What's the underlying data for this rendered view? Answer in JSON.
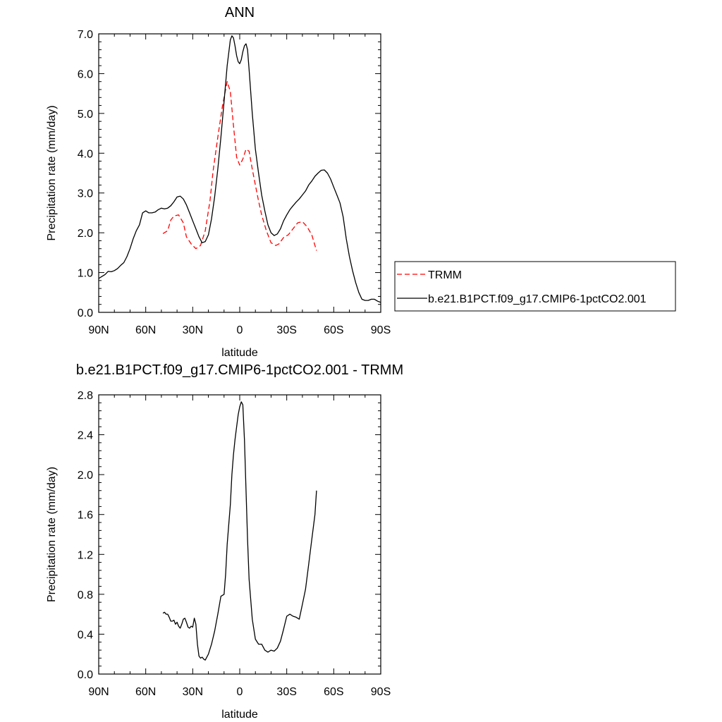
{
  "chart_data": [
    {
      "type": "line",
      "title": "ANN",
      "xlabel": "latitude",
      "ylabel": "Precipitation rate (mm/day)",
      "xlim": [
        90,
        -90
      ],
      "ylim": [
        0.0,
        7.0
      ],
      "xticks": [
        {
          "value": 90,
          "label": "90N"
        },
        {
          "value": 60,
          "label": "60N"
        },
        {
          "value": 30,
          "label": "30N"
        },
        {
          "value": 0,
          "label": "0"
        },
        {
          "value": -30,
          "label": "30S"
        },
        {
          "value": -60,
          "label": "60S"
        },
        {
          "value": -90,
          "label": "90S"
        }
      ],
      "yticks": [
        {
          "value": 0.0,
          "label": "0.0"
        },
        {
          "value": 1.0,
          "label": "1.0"
        },
        {
          "value": 2.0,
          "label": "2.0"
        },
        {
          "value": 3.0,
          "label": "3.0"
        },
        {
          "value": 4.0,
          "label": "4.0"
        },
        {
          "value": 5.0,
          "label": "5.0"
        },
        {
          "value": 6.0,
          "label": "6.0"
        },
        {
          "value": 7.0,
          "label": "7.0"
        }
      ],
      "series": [
        {
          "name": "TRMM",
          "color": "#ff0000",
          "dash": true,
          "x": [
            49,
            46,
            44,
            42,
            39,
            36,
            34,
            31,
            28,
            25,
            22,
            19,
            17,
            14,
            11,
            8,
            6,
            4,
            2,
            0,
            -2,
            -4,
            -6,
            -8,
            -10,
            -12,
            -14,
            -17,
            -20,
            -23,
            -25,
            -28,
            -31,
            -34,
            -37,
            -40,
            -43,
            -46,
            -49
          ],
          "y": [
            1.98,
            2.05,
            2.32,
            2.42,
            2.45,
            2.25,
            1.9,
            1.72,
            1.6,
            1.68,
            2.05,
            2.8,
            3.55,
            4.4,
            5.2,
            5.8,
            5.55,
            4.7,
            3.9,
            3.7,
            3.85,
            4.1,
            4.05,
            3.6,
            3.2,
            2.8,
            2.45,
            2.05,
            1.75,
            1.68,
            1.72,
            1.88,
            1.95,
            2.1,
            2.25,
            2.28,
            2.15,
            1.95,
            1.55
          ]
        },
        {
          "name": "b.e21.B1PCT.f09_g17.CMIP6-1pctCO2.001",
          "color": "#000000",
          "dash": false,
          "x": [
            90,
            88,
            86,
            84,
            82,
            80,
            78,
            76,
            74,
            72,
            70,
            68,
            66,
            64,
            62,
            60,
            58,
            56,
            54,
            52,
            50,
            48,
            46,
            44,
            42,
            40,
            38,
            36,
            34,
            32,
            30,
            28,
            26,
            24,
            22,
            20,
            18,
            16,
            14,
            12,
            10,
            8,
            6,
            5,
            4,
            3,
            2,
            1,
            0,
            -1,
            -2,
            -3,
            -4,
            -5,
            -6,
            -8,
            -10,
            -12,
            -14,
            -16,
            -18,
            -20,
            -22,
            -24,
            -26,
            -28,
            -30,
            -32,
            -34,
            -36,
            -38,
            -40,
            -42,
            -44,
            -46,
            -48,
            -50,
            -52,
            -54,
            -56,
            -58,
            -60,
            -62,
            -64,
            -66,
            -68,
            -70,
            -72,
            -74,
            -76,
            -78,
            -80,
            -82,
            -84,
            -86,
            -88,
            -90
          ],
          "y": [
            0.85,
            0.9,
            0.95,
            1.03,
            1.02,
            1.05,
            1.1,
            1.18,
            1.25,
            1.4,
            1.6,
            1.85,
            2.05,
            2.2,
            2.5,
            2.55,
            2.5,
            2.5,
            2.52,
            2.58,
            2.62,
            2.6,
            2.62,
            2.68,
            2.78,
            2.9,
            2.92,
            2.85,
            2.7,
            2.5,
            2.3,
            2.1,
            1.9,
            1.75,
            1.78,
            1.95,
            2.35,
            2.9,
            3.6,
            4.4,
            5.3,
            6.2,
            6.85,
            6.95,
            6.9,
            6.7,
            6.45,
            6.3,
            6.25,
            6.35,
            6.55,
            6.7,
            6.75,
            6.6,
            6.1,
            5.0,
            4.1,
            3.5,
            2.95,
            2.55,
            2.2,
            2.0,
            1.93,
            1.97,
            2.1,
            2.3,
            2.45,
            2.58,
            2.68,
            2.77,
            2.85,
            2.95,
            3.05,
            3.2,
            3.3,
            3.42,
            3.5,
            3.57,
            3.58,
            3.5,
            3.35,
            3.15,
            2.95,
            2.75,
            2.4,
            1.85,
            1.4,
            1.05,
            0.75,
            0.5,
            0.33,
            0.3,
            0.3,
            0.33,
            0.33,
            0.28,
            0.25
          ]
        }
      ],
      "legend": {
        "position": "right",
        "entries": [
          "TRMM",
          "b.e21.B1PCT.f09_g17.CMIP6-1pctCO2.001"
        ]
      }
    },
    {
      "type": "line",
      "title": "b.e21.B1PCT.f09_g17.CMIP6-1pctCO2.001 - TRMM",
      "xlabel": "latitude",
      "ylabel": "Precipitation rate (mm/day)",
      "xlim": [
        90,
        -90
      ],
      "ylim": [
        0.0,
        2.8
      ],
      "xticks": [
        {
          "value": 90,
          "label": "90N"
        },
        {
          "value": 60,
          "label": "60N"
        },
        {
          "value": 30,
          "label": "30N"
        },
        {
          "value": 0,
          "label": "0"
        },
        {
          "value": -30,
          "label": "30S"
        },
        {
          "value": -60,
          "label": "60S"
        },
        {
          "value": -90,
          "label": "90S"
        }
      ],
      "yticks": [
        {
          "value": 0.0,
          "label": "0.0"
        },
        {
          "value": 0.4,
          "label": "0.4"
        },
        {
          "value": 0.8,
          "label": "0.8"
        },
        {
          "value": 1.2,
          "label": "1.2"
        },
        {
          "value": 1.6,
          "label": "1.6"
        },
        {
          "value": 2.0,
          "label": "2.0"
        },
        {
          "value": 2.4,
          "label": "2.4"
        },
        {
          "value": 2.8,
          "label": "2.8"
        }
      ],
      "series": [
        {
          "name": "b.e21.B1PCT.f09_g17.CMIP6-1pctCO2.001 - TRMM",
          "color": "#000000",
          "dash": false,
          "x": [
            49,
            48,
            47,
            46,
            45,
            44,
            43,
            42,
            41,
            40,
            39,
            38,
            37,
            36,
            35,
            34,
            33,
            32,
            31,
            30,
            29,
            28,
            27,
            26,
            25,
            24,
            23,
            22,
            20,
            18,
            16,
            14,
            12,
            11,
            10,
            9,
            8,
            6,
            5,
            4,
            3,
            2,
            1,
            0,
            -1,
            -2,
            -3,
            -4,
            -5,
            -6,
            -8,
            -10,
            -12,
            -14,
            -16,
            -18,
            -20,
            -22,
            -24,
            -26,
            -28,
            -30,
            -32,
            -34,
            -36,
            -38,
            -40,
            -42,
            -44,
            -46,
            -48,
            -49
          ],
          "y": [
            0.61,
            0.62,
            0.6,
            0.6,
            0.57,
            0.53,
            0.53,
            0.54,
            0.5,
            0.52,
            0.48,
            0.46,
            0.5,
            0.55,
            0.56,
            0.52,
            0.47,
            0.46,
            0.48,
            0.47,
            0.56,
            0.5,
            0.3,
            0.18,
            0.16,
            0.17,
            0.15,
            0.14,
            0.2,
            0.3,
            0.43,
            0.6,
            0.78,
            0.79,
            0.8,
            1.0,
            1.3,
            1.7,
            2.0,
            2.2,
            2.35,
            2.48,
            2.6,
            2.68,
            2.73,
            2.7,
            2.35,
            1.85,
            1.35,
            0.95,
            0.55,
            0.35,
            0.3,
            0.3,
            0.24,
            0.22,
            0.24,
            0.23,
            0.26,
            0.33,
            0.45,
            0.58,
            0.6,
            0.58,
            0.57,
            0.55,
            0.7,
            0.85,
            1.1,
            1.35,
            1.6,
            1.84
          ]
        }
      ]
    }
  ]
}
